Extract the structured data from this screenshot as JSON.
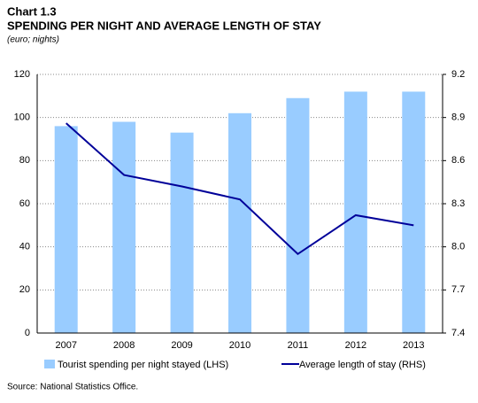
{
  "chart_data": {
    "type": "bar",
    "title": "Chart 1.3",
    "subtitle": "SPENDING PER NIGHT AND AVERAGE LENGTH OF STAY",
    "units": "(euro; nights)",
    "source": "Source: National Statistics Office.",
    "categories": [
      "2007",
      "2008",
      "2009",
      "2010",
      "2011",
      "2012",
      "2013"
    ],
    "series": [
      {
        "name": "Tourist spending per night stayed (LHS)",
        "color": "#99ccff",
        "type": "bar",
        "values": [
          96,
          98,
          93,
          102,
          109,
          112,
          112
        ]
      },
      {
        "name": "Average length of stay (RHS)",
        "color": "#000099",
        "type": "line",
        "axis": "y2",
        "values": [
          8.86,
          8.5,
          8.42,
          8.33,
          7.95,
          8.22,
          8.15
        ]
      }
    ],
    "ylim": [
      0,
      120
    ],
    "yticks": [
      0,
      20,
      40,
      60,
      80,
      100,
      120
    ],
    "y2lim": [
      7.4,
      9.2
    ],
    "y2ticks": [
      7.4,
      7.7,
      {
        "value": 8,
        "label": "8.0"
      },
      8.3,
      8.6,
      8.9,
      9.2
    ],
    "grid": true
  }
}
